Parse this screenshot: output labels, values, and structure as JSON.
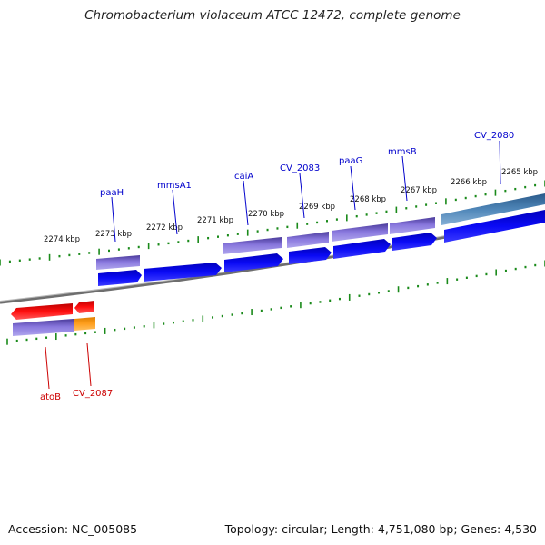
{
  "title": "Chromobacterium violaceum ATCC 12472, complete genome",
  "footer": {
    "accession": "Accession: NC_005085",
    "summary": "Topology: circular; Length: 4,751,080 bp; Genes: 4,530"
  },
  "colors": {
    "tick": "#1a8a1a",
    "backbone": "#7a7a7a",
    "gene_label_top": "#0000cc",
    "gene_label_bottom": "#cc0000",
    "cds_blue": "#0000ee",
    "cds_red": "#ee0000",
    "feature_purple": "#7766cc",
    "feature_steel": "#4477aa",
    "feature_orange": "#ff9900"
  },
  "kbp_labels": [
    "2265 kbp",
    "2266 kbp",
    "2267 kbp",
    "2268 kbp",
    "2269 kbp",
    "2270 kbp",
    "2271 kbp",
    "2272 kbp",
    "2273 kbp",
    "2274 kbp"
  ],
  "gene_labels_top": [
    "CV_2080",
    "mmsB",
    "paaG",
    "CV_2083",
    "caiA",
    "mmsA1",
    "paaH"
  ],
  "gene_labels_bottom": [
    "atoB",
    "CV_2087"
  ]
}
